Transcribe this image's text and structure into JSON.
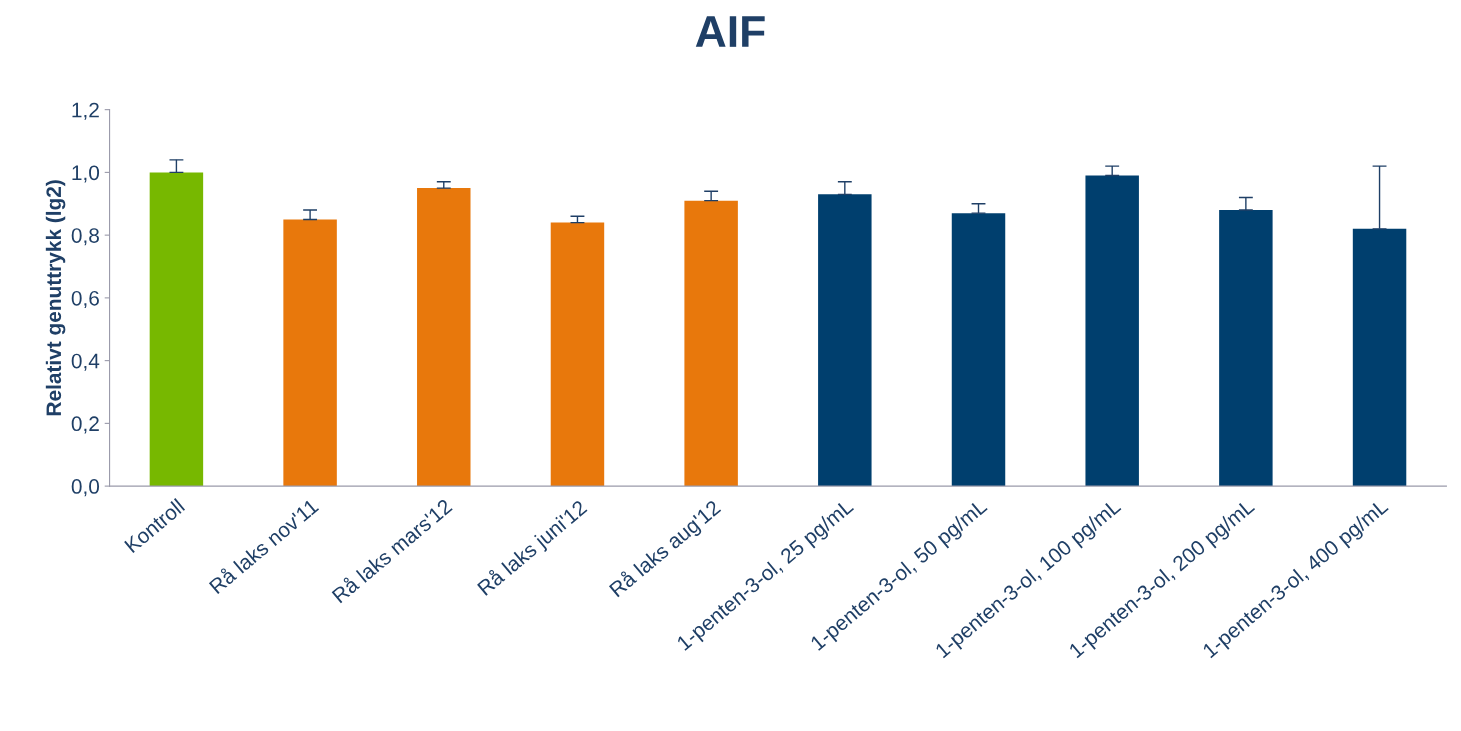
{
  "chart_data": {
    "type": "bar",
    "title": "AIF",
    "ylabel": "Relativt genuttrykk (lg2)",
    "categories": [
      "Kontroll",
      "Rå laks nov'11",
      "Rå laks mars'12",
      "Rå laks juni'12",
      "Rå laks aug'12",
      "1-penten-3-ol, 25 pg/mL",
      "1-penten-3-ol, 50 pg/mL",
      "1-penten-3-ol, 100 pg/mL",
      "1-penten-3-ol, 200 pg/mL",
      "1-penten-3-ol, 400 pg/mL"
    ],
    "values": [
      1.0,
      0.85,
      0.95,
      0.84,
      0.91,
      0.93,
      0.87,
      0.99,
      0.88,
      0.82
    ],
    "colors": [
      "#77b800",
      "#e8780c",
      "#e8780c",
      "#e8780c",
      "#e8780c",
      "#003f6e",
      "#003f6e",
      "#003f6e",
      "#003f6e",
      "#003f6e"
    ],
    "errors": [
      [
        1.0,
        1.04
      ],
      [
        0.85,
        0.88
      ],
      [
        0.95,
        0.97
      ],
      [
        0.84,
        0.86
      ],
      [
        0.91,
        0.94
      ],
      [
        0.93,
        0.97
      ],
      [
        0.87,
        0.9
      ],
      [
        0.99,
        1.02
      ],
      [
        0.88,
        0.92
      ],
      [
        0.82,
        1.02
      ]
    ],
    "ylim": [
      0,
      1.2
    ],
    "yticks": [
      {
        "value": 0,
        "label": "0,0"
      },
      {
        "value": 0.2,
        "label": "0,2"
      },
      {
        "value": 0.4,
        "label": "0,4"
      },
      {
        "value": 0.6,
        "label": "0,6"
      },
      {
        "value": 0.8,
        "label": "0,8"
      },
      {
        "value": 1.0,
        "label": "1,0"
      },
      {
        "value": 1.2,
        "label": "1,2"
      }
    ],
    "grid": false,
    "legend": false
  }
}
